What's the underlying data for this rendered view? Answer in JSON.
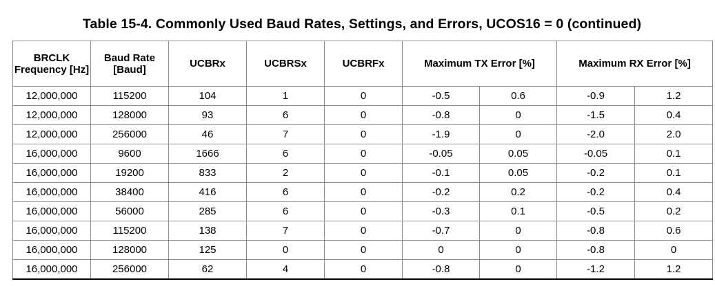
{
  "caption": "Table 15-4. Commonly Used Baud Rates, Settings, and Errors, UCOS16 = 0 (continued)",
  "headers": {
    "brclk": "BRCLK Frequency [Hz]",
    "baud_rate": "Baud Rate [Baud]",
    "ucbrx": "UCBRx",
    "ucbrsx": "UCBRSx",
    "ucbrfx": "UCBRFx",
    "max_tx_error": "Maximum TX Error [%]",
    "max_rx_error": "Maximum RX Error [%]"
  },
  "rows": [
    {
      "brclk": "12,000,000",
      "baud": "115200",
      "ucbrx": "104",
      "ucbrsx": "1",
      "ucbrfx": "0",
      "tx_min": "-0.5",
      "tx_max": "0.6",
      "rx_min": "-0.9",
      "rx_max": "1.2"
    },
    {
      "brclk": "12,000,000",
      "baud": "128000",
      "ucbrx": "93",
      "ucbrsx": "6",
      "ucbrfx": "0",
      "tx_min": "-0.8",
      "tx_max": "0",
      "rx_min": "-1.5",
      "rx_max": "0.4"
    },
    {
      "brclk": "12,000,000",
      "baud": "256000",
      "ucbrx": "46",
      "ucbrsx": "7",
      "ucbrfx": "0",
      "tx_min": "-1.9",
      "tx_max": "0",
      "rx_min": "-2.0",
      "rx_max": "2.0"
    },
    {
      "brclk": "16,000,000",
      "baud": "9600",
      "ucbrx": "1666",
      "ucbrsx": "6",
      "ucbrfx": "0",
      "tx_min": "-0.05",
      "tx_max": "0.05",
      "rx_min": "-0.05",
      "rx_max": "0.1"
    },
    {
      "brclk": "16,000,000",
      "baud": "19200",
      "ucbrx": "833",
      "ucbrsx": "2",
      "ucbrfx": "0",
      "tx_min": "-0.1",
      "tx_max": "0.05",
      "rx_min": "-0.2",
      "rx_max": "0.1"
    },
    {
      "brclk": "16,000,000",
      "baud": "38400",
      "ucbrx": "416",
      "ucbrsx": "6",
      "ucbrfx": "0",
      "tx_min": "-0.2",
      "tx_max": "0.2",
      "rx_min": "-0.2",
      "rx_max": "0.4"
    },
    {
      "brclk": "16,000,000",
      "baud": "56000",
      "ucbrx": "285",
      "ucbrsx": "6",
      "ucbrfx": "0",
      "tx_min": "-0.3",
      "tx_max": "0.1",
      "rx_min": "-0.5",
      "rx_max": "0.2"
    },
    {
      "brclk": "16,000,000",
      "baud": "115200",
      "ucbrx": "138",
      "ucbrsx": "7",
      "ucbrfx": "0",
      "tx_min": "-0.7",
      "tx_max": "0",
      "rx_min": "-0.8",
      "rx_max": "0.6"
    },
    {
      "brclk": "16,000,000",
      "baud": "128000",
      "ucbrx": "125",
      "ucbrsx": "0",
      "ucbrfx": "0",
      "tx_min": "0",
      "tx_max": "0",
      "rx_min": "-0.8",
      "rx_max": "0"
    },
    {
      "brclk": "16,000,000",
      "baud": "256000",
      "ucbrx": "62",
      "ucbrsx": "4",
      "ucbrfx": "0",
      "tx_min": "-0.8",
      "tx_max": "0",
      "rx_min": "-1.2",
      "rx_max": "1.2"
    }
  ]
}
